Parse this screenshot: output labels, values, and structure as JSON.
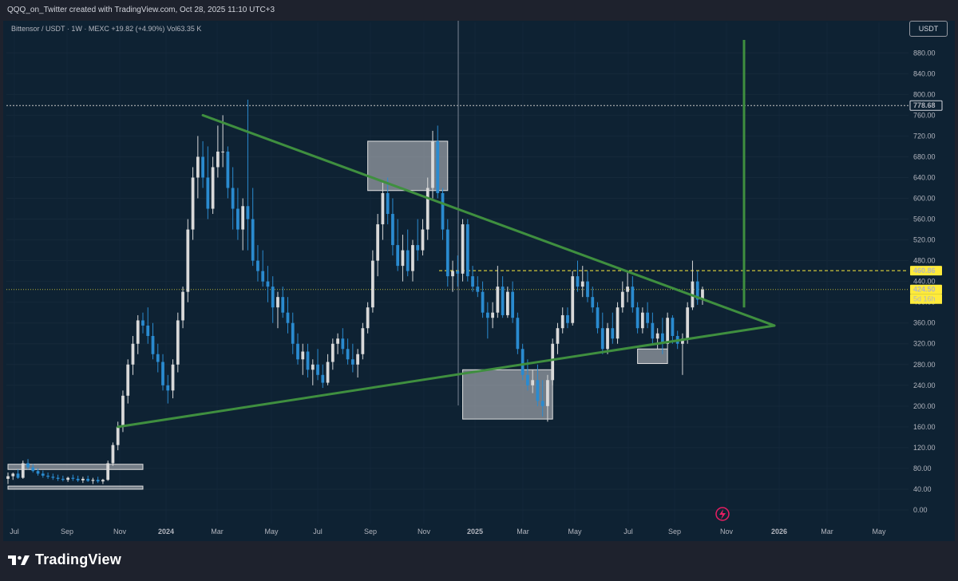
{
  "header": {
    "caption": "QQQ_on_Twitter created with TradingView.com, Oct 28, 2025 11:10 UTC+3"
  },
  "legend": {
    "text": "Bittensor / USDT · 1W · MEXC  +19.82 (+4.90%)  Vol63.35 K"
  },
  "currency_button": "USDT",
  "brand": "TradingView",
  "colors": {
    "up": "#d9d9d9",
    "down": "#2a8bd0",
    "trendline": "#3f8f3f",
    "box": "#c8c8cc",
    "price_label_bg": "#ffeb3b"
  },
  "y_ticks": [
    "880.00",
    "840.00",
    "800.00",
    "760.00",
    "720.00",
    "680.00",
    "640.00",
    "600.00",
    "560.00",
    "520.00",
    "480.00",
    "440.00",
    "400.00",
    "360.00",
    "320.00",
    "280.00",
    "240.00",
    "200.00",
    "160.00",
    "120.00",
    "80.00",
    "40.00",
    "0.00"
  ],
  "x_ticks": [
    "Jul",
    "Sep",
    "Nov",
    "2024",
    "Mar",
    "May",
    "Jul",
    "Sep",
    "Nov",
    "2025",
    "Mar",
    "May",
    "Jul",
    "Sep",
    "Nov",
    "2026",
    "Mar",
    "May"
  ],
  "price_labels": {
    "ath": "778.68",
    "resistance": "460.86",
    "last": "424.50",
    "countdown": "5d 16h"
  },
  "chart_data": {
    "type": "candlestick",
    "symbol": "Bittensor / USDT",
    "interval": "1W",
    "exchange": "MEXC",
    "change": "+19.82 (+4.90%)",
    "volume": "63.35 K",
    "ylim": [
      0,
      900
    ],
    "levels": {
      "ath": 778.68,
      "resistance": 460.86,
      "last": 424.5
    },
    "candles": [
      {
        "o": 60,
        "h": 72,
        "l": 50,
        "c": 65
      },
      {
        "o": 65,
        "h": 72,
        "l": 58,
        "c": 70
      },
      {
        "o": 70,
        "h": 78,
        "l": 60,
        "c": 62
      },
      {
        "o": 62,
        "h": 95,
        "l": 60,
        "c": 90
      },
      {
        "o": 90,
        "h": 98,
        "l": 78,
        "c": 82
      },
      {
        "o": 82,
        "h": 88,
        "l": 72,
        "c": 75
      },
      {
        "o": 75,
        "h": 80,
        "l": 66,
        "c": 70
      },
      {
        "o": 70,
        "h": 76,
        "l": 62,
        "c": 66
      },
      {
        "o": 66,
        "h": 72,
        "l": 60,
        "c": 64
      },
      {
        "o": 64,
        "h": 70,
        "l": 58,
        "c": 62
      },
      {
        "o": 62,
        "h": 68,
        "l": 56,
        "c": 60
      },
      {
        "o": 60,
        "h": 66,
        "l": 55,
        "c": 58
      },
      {
        "o": 58,
        "h": 64,
        "l": 54,
        "c": 62
      },
      {
        "o": 62,
        "h": 68,
        "l": 56,
        "c": 60
      },
      {
        "o": 60,
        "h": 66,
        "l": 54,
        "c": 57
      },
      {
        "o": 57,
        "h": 64,
        "l": 52,
        "c": 60
      },
      {
        "o": 60,
        "h": 66,
        "l": 54,
        "c": 56
      },
      {
        "o": 56,
        "h": 62,
        "l": 50,
        "c": 58
      },
      {
        "o": 58,
        "h": 64,
        "l": 52,
        "c": 55
      },
      {
        "o": 55,
        "h": 60,
        "l": 50,
        "c": 58
      },
      {
        "o": 58,
        "h": 95,
        "l": 56,
        "c": 90
      },
      {
        "o": 90,
        "h": 130,
        "l": 85,
        "c": 125
      },
      {
        "o": 125,
        "h": 170,
        "l": 115,
        "c": 160
      },
      {
        "o": 160,
        "h": 230,
        "l": 150,
        "c": 220
      },
      {
        "o": 220,
        "h": 290,
        "l": 205,
        "c": 280
      },
      {
        "o": 280,
        "h": 335,
        "l": 260,
        "c": 320
      },
      {
        "o": 320,
        "h": 375,
        "l": 300,
        "c": 365
      },
      {
        "o": 365,
        "h": 380,
        "l": 340,
        "c": 355
      },
      {
        "o": 355,
        "h": 390,
        "l": 320,
        "c": 335
      },
      {
        "o": 335,
        "h": 360,
        "l": 290,
        "c": 300
      },
      {
        "o": 300,
        "h": 320,
        "l": 265,
        "c": 285
      },
      {
        "o": 285,
        "h": 300,
        "l": 230,
        "c": 240
      },
      {
        "o": 240,
        "h": 260,
        "l": 205,
        "c": 230
      },
      {
        "o": 230,
        "h": 290,
        "l": 215,
        "c": 280
      },
      {
        "o": 280,
        "h": 380,
        "l": 265,
        "c": 365
      },
      {
        "o": 365,
        "h": 430,
        "l": 350,
        "c": 420
      },
      {
        "o": 420,
        "h": 560,
        "l": 400,
        "c": 540
      },
      {
        "o": 540,
        "h": 660,
        "l": 520,
        "c": 640
      },
      {
        "o": 640,
        "h": 720,
        "l": 600,
        "c": 680
      },
      {
        "o": 680,
        "h": 710,
        "l": 620,
        "c": 640
      },
      {
        "o": 640,
        "h": 700,
        "l": 560,
        "c": 580
      },
      {
        "o": 580,
        "h": 680,
        "l": 570,
        "c": 660
      },
      {
        "o": 660,
        "h": 740,
        "l": 640,
        "c": 690
      },
      {
        "o": 690,
        "h": 760,
        "l": 660,
        "c": 690
      },
      {
        "o": 690,
        "h": 700,
        "l": 600,
        "c": 620
      },
      {
        "o": 620,
        "h": 660,
        "l": 540,
        "c": 580
      },
      {
        "o": 580,
        "h": 620,
        "l": 520,
        "c": 540
      },
      {
        "o": 540,
        "h": 600,
        "l": 500,
        "c": 585
      },
      {
        "o": 585,
        "h": 790,
        "l": 500,
        "c": 560
      },
      {
        "o": 560,
        "h": 620,
        "l": 470,
        "c": 480
      },
      {
        "o": 480,
        "h": 510,
        "l": 440,
        "c": 460
      },
      {
        "o": 460,
        "h": 500,
        "l": 430,
        "c": 440
      },
      {
        "o": 440,
        "h": 470,
        "l": 400,
        "c": 430
      },
      {
        "o": 430,
        "h": 450,
        "l": 360,
        "c": 390
      },
      {
        "o": 390,
        "h": 420,
        "l": 350,
        "c": 410
      },
      {
        "o": 410,
        "h": 430,
        "l": 370,
        "c": 380
      },
      {
        "o": 380,
        "h": 410,
        "l": 340,
        "c": 360
      },
      {
        "o": 360,
        "h": 380,
        "l": 300,
        "c": 320
      },
      {
        "o": 320,
        "h": 340,
        "l": 280,
        "c": 290
      },
      {
        "o": 290,
        "h": 320,
        "l": 260,
        "c": 305
      },
      {
        "o": 305,
        "h": 320,
        "l": 255,
        "c": 270
      },
      {
        "o": 270,
        "h": 290,
        "l": 240,
        "c": 280
      },
      {
        "o": 280,
        "h": 310,
        "l": 250,
        "c": 260
      },
      {
        "o": 260,
        "h": 280,
        "l": 235,
        "c": 245
      },
      {
        "o": 245,
        "h": 300,
        "l": 240,
        "c": 285
      },
      {
        "o": 285,
        "h": 330,
        "l": 270,
        "c": 320
      },
      {
        "o": 320,
        "h": 340,
        "l": 300,
        "c": 330
      },
      {
        "o": 330,
        "h": 350,
        "l": 300,
        "c": 310
      },
      {
        "o": 310,
        "h": 330,
        "l": 280,
        "c": 290
      },
      {
        "o": 290,
        "h": 320,
        "l": 265,
        "c": 280
      },
      {
        "o": 280,
        "h": 310,
        "l": 255,
        "c": 300
      },
      {
        "o": 300,
        "h": 360,
        "l": 290,
        "c": 350
      },
      {
        "o": 350,
        "h": 400,
        "l": 340,
        "c": 390
      },
      {
        "o": 390,
        "h": 500,
        "l": 380,
        "c": 480
      },
      {
        "o": 480,
        "h": 570,
        "l": 450,
        "c": 550
      },
      {
        "o": 550,
        "h": 630,
        "l": 520,
        "c": 610
      },
      {
        "o": 610,
        "h": 640,
        "l": 550,
        "c": 570
      },
      {
        "o": 570,
        "h": 600,
        "l": 490,
        "c": 510
      },
      {
        "o": 510,
        "h": 560,
        "l": 460,
        "c": 470
      },
      {
        "o": 470,
        "h": 530,
        "l": 440,
        "c": 500
      },
      {
        "o": 500,
        "h": 540,
        "l": 450,
        "c": 460
      },
      {
        "o": 460,
        "h": 520,
        "l": 440,
        "c": 510
      },
      {
        "o": 510,
        "h": 560,
        "l": 480,
        "c": 500
      },
      {
        "o": 500,
        "h": 560,
        "l": 490,
        "c": 540
      },
      {
        "o": 540,
        "h": 640,
        "l": 520,
        "c": 620
      },
      {
        "o": 620,
        "h": 730,
        "l": 600,
        "c": 710
      },
      {
        "o": 710,
        "h": 740,
        "l": 600,
        "c": 610
      },
      {
        "o": 610,
        "h": 620,
        "l": 520,
        "c": 540
      },
      {
        "o": 540,
        "h": 560,
        "l": 430,
        "c": 450
      },
      {
        "o": 450,
        "h": 480,
        "l": 420,
        "c": 460
      },
      {
        "o": 460,
        "h": 490,
        "l": 430,
        "c": 455
      },
      {
        "o": 455,
        "h": 560,
        "l": 440,
        "c": 550
      },
      {
        "o": 550,
        "h": 560,
        "l": 440,
        "c": 450
      },
      {
        "o": 450,
        "h": 470,
        "l": 420,
        "c": 430
      },
      {
        "o": 430,
        "h": 450,
        "l": 410,
        "c": 420
      },
      {
        "o": 420,
        "h": 440,
        "l": 370,
        "c": 380
      },
      {
        "o": 380,
        "h": 400,
        "l": 330,
        "c": 370
      },
      {
        "o": 370,
        "h": 400,
        "l": 350,
        "c": 380
      },
      {
        "o": 380,
        "h": 470,
        "l": 370,
        "c": 430
      },
      {
        "o": 430,
        "h": 450,
        "l": 370,
        "c": 375
      },
      {
        "o": 375,
        "h": 430,
        "l": 370,
        "c": 420
      },
      {
        "o": 420,
        "h": 440,
        "l": 360,
        "c": 370
      },
      {
        "o": 370,
        "h": 380,
        "l": 300,
        "c": 310
      },
      {
        "o": 310,
        "h": 320,
        "l": 250,
        "c": 260
      },
      {
        "o": 260,
        "h": 290,
        "l": 230,
        "c": 240
      },
      {
        "o": 240,
        "h": 270,
        "l": 225,
        "c": 250
      },
      {
        "o": 250,
        "h": 280,
        "l": 200,
        "c": 210
      },
      {
        "o": 210,
        "h": 250,
        "l": 180,
        "c": 200
      },
      {
        "o": 200,
        "h": 260,
        "l": 170,
        "c": 250
      },
      {
        "o": 250,
        "h": 330,
        "l": 240,
        "c": 320
      },
      {
        "o": 320,
        "h": 360,
        "l": 300,
        "c": 350
      },
      {
        "o": 350,
        "h": 390,
        "l": 340,
        "c": 375
      },
      {
        "o": 375,
        "h": 390,
        "l": 350,
        "c": 360
      },
      {
        "o": 360,
        "h": 460,
        "l": 355,
        "c": 450
      },
      {
        "o": 450,
        "h": 480,
        "l": 420,
        "c": 430
      },
      {
        "o": 430,
        "h": 470,
        "l": 410,
        "c": 440
      },
      {
        "o": 440,
        "h": 460,
        "l": 400,
        "c": 410
      },
      {
        "o": 410,
        "h": 430,
        "l": 380,
        "c": 390
      },
      {
        "o": 390,
        "h": 400,
        "l": 340,
        "c": 350
      },
      {
        "o": 350,
        "h": 380,
        "l": 300,
        "c": 310
      },
      {
        "o": 310,
        "h": 360,
        "l": 300,
        "c": 350
      },
      {
        "o": 350,
        "h": 380,
        "l": 320,
        "c": 330
      },
      {
        "o": 330,
        "h": 400,
        "l": 320,
        "c": 390
      },
      {
        "o": 390,
        "h": 440,
        "l": 380,
        "c": 420
      },
      {
        "o": 420,
        "h": 460,
        "l": 400,
        "c": 430
      },
      {
        "o": 430,
        "h": 450,
        "l": 380,
        "c": 390
      },
      {
        "o": 390,
        "h": 400,
        "l": 340,
        "c": 350
      },
      {
        "o": 350,
        "h": 390,
        "l": 340,
        "c": 380
      },
      {
        "o": 380,
        "h": 400,
        "l": 350,
        "c": 360
      },
      {
        "o": 360,
        "h": 380,
        "l": 320,
        "c": 330
      },
      {
        "o": 330,
        "h": 350,
        "l": 310,
        "c": 340
      },
      {
        "o": 340,
        "h": 370,
        "l": 300,
        "c": 320
      },
      {
        "o": 320,
        "h": 380,
        "l": 310,
        "c": 370
      },
      {
        "o": 370,
        "h": 375,
        "l": 320,
        "c": 335
      },
      {
        "o": 335,
        "h": 345,
        "l": 310,
        "c": 320
      },
      {
        "o": 320,
        "h": 340,
        "l": 260,
        "c": 330
      },
      {
        "o": 330,
        "h": 400,
        "l": 320,
        "c": 390
      },
      {
        "o": 390,
        "h": 480,
        "l": 385,
        "c": 440
      },
      {
        "o": 440,
        "h": 460,
        "l": 395,
        "c": 405
      },
      {
        "o": 405,
        "h": 430,
        "l": 395,
        "c": 424.5
      }
    ],
    "annotations": {
      "trendlines": [
        {
          "from_index": 39,
          "from_price": 760,
          "to_index": 143,
          "to_price": 355
        },
        {
          "from_index": 22,
          "from_price": 160,
          "to_index": 143,
          "to_price": 355
        }
      ],
      "target_vertical": {
        "index": 138,
        "from_price": 390,
        "to_price": 900
      },
      "boxes": [
        {
          "from_index": 0,
          "to_index": 27,
          "from_price": 78,
          "to_price": 88
        },
        {
          "from_index": 0,
          "to_index": 27,
          "from_price": 40,
          "to_price": 46
        },
        {
          "from_index": 72,
          "to_index": 88,
          "from_price": 615,
          "to_price": 710
        },
        {
          "from_index": 91,
          "to_index": 109,
          "from_price": 175,
          "to_price": 270
        },
        {
          "from_index": 126,
          "to_index": 132,
          "from_price": 282,
          "to_price": 310
        }
      ]
    }
  }
}
